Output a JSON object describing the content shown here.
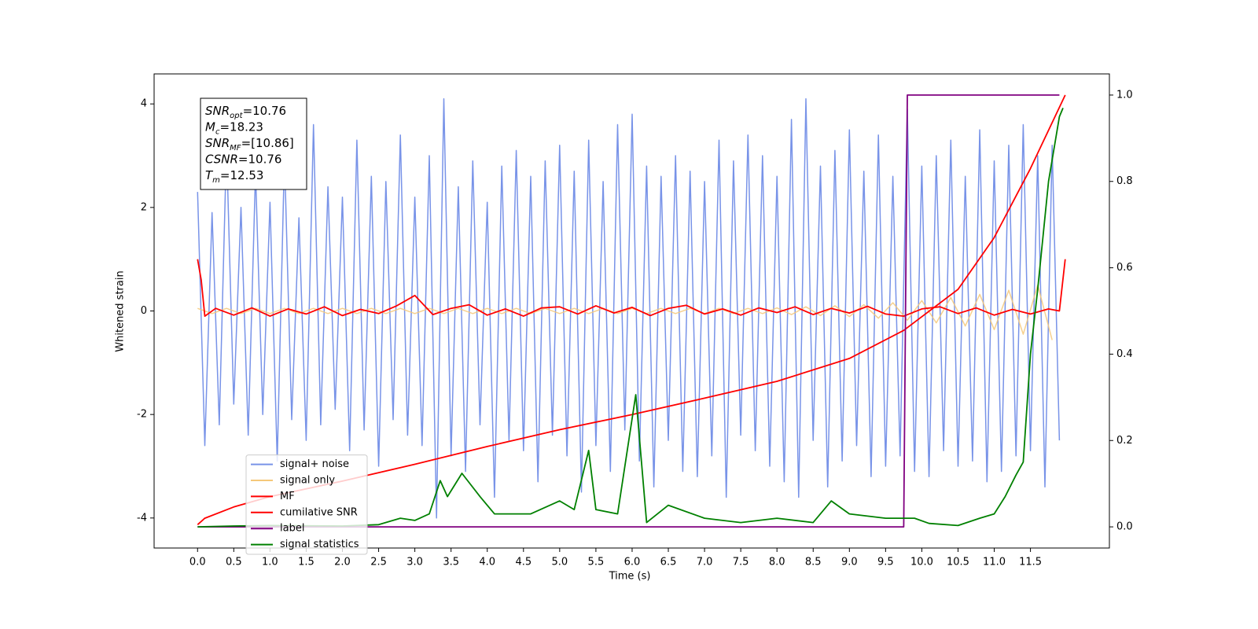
{
  "chart_data": {
    "type": "line",
    "xlabel": "Time (s)",
    "ylabel": "Whitened strain",
    "xlim": [
      -0.6,
      12.59
    ],
    "ylim": [
      -4.58,
      4.58
    ],
    "y2lim": [
      -0.049,
      1.049
    ],
    "xticks": [
      {
        "value": 0,
        "label": "0.0"
      },
      0.5,
      {
        "value": 1,
        "label": "1.0"
      },
      1.5,
      {
        "value": 2,
        "label": "2.0"
      },
      2.5,
      {
        "value": 3,
        "label": "3.0"
      },
      3.5,
      {
        "value": 4,
        "label": "4.0"
      },
      4.5,
      {
        "value": 5,
        "label": "5.0"
      },
      5.5,
      {
        "value": 6,
        "label": "6.0"
      },
      6.5,
      {
        "value": 7,
        "label": "7.0"
      },
      7.5,
      {
        "value": 8,
        "label": "8.0"
      },
      8.5,
      {
        "value": 9,
        "label": "9.0"
      },
      9.5,
      {
        "value": 10,
        "label": "10.0"
      },
      10.5,
      {
        "value": 11,
        "label": "11.0"
      },
      11.5
    ],
    "yticks": [
      -4,
      -2,
      0,
      2,
      4
    ],
    "y2ticks": [
      {
        "value": 0,
        "label": "0.0"
      },
      0.2,
      0.4,
      0.6,
      0.8,
      {
        "value": 1,
        "label": "1.0"
      }
    ],
    "legend": "lower left",
    "annotation": [
      {
        "symbol": "SNR",
        "subscript": "opt",
        "text": "=10.76"
      },
      {
        "symbol": "M",
        "subscript": "c",
        "text": "=18.23"
      },
      {
        "symbol": "SNR",
        "subscript": "MF",
        "text": "=[10.86]"
      },
      {
        "symbol": "CSNR",
        "text": "=10.76"
      },
      {
        "symbol": "T",
        "subscript": "m",
        "text": "=12.53"
      }
    ],
    "series": [
      {
        "name": "signal+ noise",
        "color": "#7893e8",
        "x": [
          0,
          0.1,
          0.2,
          0.3,
          0.4,
          0.5,
          0.6,
          0.7,
          0.8,
          0.9,
          1,
          1.1,
          1.2,
          1.3,
          1.4,
          1.5,
          1.6,
          1.7,
          1.8,
          1.9,
          2,
          2.1,
          2.2,
          2.3,
          2.4,
          2.5,
          2.6,
          2.7,
          2.8,
          2.9,
          3,
          3.1,
          3.2,
          3.3,
          3.4,
          3.5,
          3.6,
          3.7,
          3.8,
          3.9,
          4,
          4.1,
          4.2,
          4.3,
          4.4,
          4.5,
          4.6,
          4.7,
          4.8,
          4.9,
          5,
          5.1,
          5.2,
          5.3,
          5.4,
          5.5,
          5.6,
          5.7,
          5.8,
          5.9,
          6,
          6.1,
          6.2,
          6.3,
          6.4,
          6.5,
          6.6,
          6.7,
          6.8,
          6.9,
          7,
          7.1,
          7.2,
          7.3,
          7.4,
          7.5,
          7.6,
          7.7,
          7.8,
          7.9,
          8,
          8.1,
          8.2,
          8.3,
          8.4,
          8.5,
          8.6,
          8.7,
          8.8,
          8.9,
          9,
          9.1,
          9.2,
          9.3,
          9.4,
          9.5,
          9.6,
          9.7,
          9.8,
          9.9,
          10,
          10.1,
          10.2,
          10.3,
          10.4,
          10.5,
          10.6,
          10.7,
          10.8,
          10.9,
          11,
          11.1,
          11.2,
          11.3,
          11.4,
          11.5,
          11.6,
          11.7,
          11.8,
          11.9
        ],
        "values": [
          2.3,
          -2.6,
          1.9,
          -2.2,
          3.2,
          -1.8,
          2.0,
          -2.4,
          2.7,
          -2.0,
          2.1,
          -2.9,
          3.0,
          -2.1,
          1.8,
          -2.5,
          3.6,
          -2.2,
          2.4,
          -1.9,
          2.2,
          -2.7,
          3.3,
          -2.3,
          2.6,
          -3.0,
          2.5,
          -2.1,
          3.4,
          -2.4,
          2.2,
          -2.6,
          3.0,
          -4.0,
          4.1,
          -2.8,
          2.4,
          -3.1,
          2.9,
          -2.2,
          2.1,
          -3.6,
          2.8,
          -2.5,
          3.1,
          -2.7,
          2.6,
          -3.3,
          2.9,
          -2.4,
          3.2,
          -2.8,
          2.7,
          -3.5,
          3.3,
          -2.6,
          2.5,
          -3.1,
          3.6,
          -2.3,
          3.8,
          -2.9,
          2.8,
          -3.4,
          2.6,
          -2.5,
          3.0,
          -3.1,
          2.7,
          -3.2,
          2.5,
          -2.8,
          3.3,
          -3.6,
          2.9,
          -2.4,
          3.4,
          -2.7,
          3.0,
          -3.0,
          2.6,
          -3.3,
          3.7,
          -3.6,
          4.1,
          -2.5,
          2.8,
          -3.4,
          3.1,
          -2.9,
          3.5,
          -2.6,
          2.7,
          -3.2,
          3.4,
          -3.0,
          2.6,
          -2.8,
          3.9,
          -3.1,
          2.8,
          -3.2,
          3.0,
          -2.7,
          3.3,
          -3.0,
          2.6,
          -2.9,
          3.5,
          -3.3,
          2.9,
          -3.1,
          3.2,
          -2.8,
          3.6,
          -2.7,
          3.0,
          -3.4,
          3.2,
          -2.5
        ]
      },
      {
        "name": "signal only",
        "color": "#f5c87a",
        "x": [
          0,
          0.2,
          0.4,
          0.6,
          0.8,
          1,
          1.2,
          1.4,
          1.6,
          1.8,
          2,
          2.2,
          2.4,
          2.6,
          2.8,
          3,
          3.2,
          3.4,
          3.6,
          3.8,
          4,
          4.2,
          4.4,
          4.6,
          4.8,
          5,
          5.2,
          5.4,
          5.6,
          5.8,
          6,
          6.2,
          6.4,
          6.6,
          6.8,
          7,
          7.2,
          7.4,
          7.6,
          7.8,
          8,
          8.2,
          8.4,
          8.6,
          8.8,
          9,
          9.2,
          9.4,
          9.6,
          9.8,
          10,
          10.2,
          10.4,
          10.6,
          10.8,
          11,
          11.2,
          11.4,
          11.6,
          11.8
        ],
        "values": [
          0.05,
          -0.05,
          0.05,
          -0.05,
          0.05,
          -0.05,
          0.05,
          -0.05,
          0.05,
          -0.05,
          0.05,
          -0.05,
          0.05,
          -0.05,
          0.05,
          -0.05,
          0.05,
          -0.05,
          0.05,
          -0.05,
          0.05,
          -0.05,
          0.05,
          -0.05,
          0.05,
          -0.05,
          0.05,
          -0.05,
          0.05,
          -0.05,
          0.05,
          -0.05,
          0.05,
          -0.05,
          0.05,
          -0.05,
          0.05,
          -0.05,
          0.05,
          -0.05,
          0.06,
          -0.07,
          0.08,
          -0.09,
          0.1,
          -0.11,
          0.12,
          -0.14,
          0.16,
          -0.18,
          0.2,
          -0.23,
          0.26,
          -0.29,
          0.32,
          -0.36,
          0.4,
          -0.45,
          0.5,
          -0.56
        ]
      },
      {
        "name": "MF",
        "color": "#ff0000",
        "x": [
          0,
          0.05,
          0.1,
          0.25,
          0.5,
          0.75,
          1,
          1.25,
          1.5,
          1.75,
          2,
          2.25,
          2.5,
          2.75,
          3,
          3.25,
          3.5,
          3.75,
          4,
          4.25,
          4.5,
          4.75,
          5,
          5.25,
          5.5,
          5.75,
          6,
          6.25,
          6.5,
          6.75,
          7,
          7.25,
          7.5,
          7.75,
          8,
          8.25,
          8.5,
          8.75,
          9,
          9.25,
          9.5,
          9.75,
          10,
          10.25,
          10.5,
          10.75,
          11,
          11.25,
          11.5,
          11.75,
          11.9,
          11.98
        ],
        "values": [
          1.0,
          0.6,
          -0.1,
          0.05,
          -0.08,
          0.06,
          -0.1,
          0.04,
          -0.06,
          0.08,
          -0.09,
          0.03,
          -0.05,
          0.1,
          0.3,
          -0.07,
          0.05,
          0.12,
          -0.08,
          0.04,
          -0.1,
          0.06,
          0.08,
          -0.06,
          0.1,
          -0.04,
          0.07,
          -0.09,
          0.05,
          0.11,
          -0.06,
          0.04,
          -0.08,
          0.06,
          -0.03,
          0.08,
          -0.07,
          0.05,
          -0.04,
          0.09,
          -0.06,
          -0.1,
          0.04,
          0.08,
          -0.05,
          0.06,
          -0.08,
          0.03,
          -0.06,
          0.04,
          0.0,
          1.0
        ]
      },
      {
        "name": "cumilative SNR",
        "color": "#ff0000",
        "axis": "y2",
        "x": [
          0,
          0.1,
          0.5,
          1,
          2,
          3,
          4,
          5,
          6,
          7,
          8,
          9,
          9.75,
          10.5,
          11,
          11.5,
          11.98
        ],
        "values": [
          0.005,
          0.02,
          0.046,
          0.07,
          0.106,
          0.145,
          0.186,
          0.225,
          0.26,
          0.298,
          0.337,
          0.39,
          0.455,
          0.55,
          0.67,
          0.83,
          1.0
        ]
      },
      {
        "name": "label",
        "color": "#800080",
        "axis": "y2",
        "x": [
          0,
          9.75,
          9.8,
          11.9
        ],
        "values": [
          0,
          0,
          1,
          1
        ]
      },
      {
        "name": "signal statistics",
        "color": "#008000",
        "axis": "y2",
        "x": [
          0,
          0.5,
          1,
          2,
          2.5,
          2.8,
          3.0,
          3.2,
          3.35,
          3.45,
          3.65,
          3.9,
          4.1,
          4.3,
          4.6,
          5.0,
          5.2,
          5.4,
          5.5,
          5.8,
          6.05,
          6.2,
          6.5,
          7.0,
          7.5,
          8.0,
          8.5,
          8.75,
          9.0,
          9.5,
          9.9,
          10.1,
          10.5,
          10.8,
          11.0,
          11.15,
          11.3,
          11.4,
          11.5,
          11.6,
          11.75,
          11.9,
          11.95
        ],
        "values": [
          0,
          0.002,
          0.003,
          0.002,
          0.005,
          0.02,
          0.015,
          0.03,
          0.107,
          0.07,
          0.124,
          0.07,
          0.03,
          0.03,
          0.03,
          0.06,
          0.04,
          0.177,
          0.04,
          0.03,
          0.306,
          0.01,
          0.05,
          0.02,
          0.01,
          0.02,
          0.01,
          0.06,
          0.03,
          0.02,
          0.02,
          0.008,
          0.003,
          0.02,
          0.03,
          0.07,
          0.12,
          0.15,
          0.4,
          0.55,
          0.8,
          0.95,
          0.97
        ]
      }
    ]
  }
}
